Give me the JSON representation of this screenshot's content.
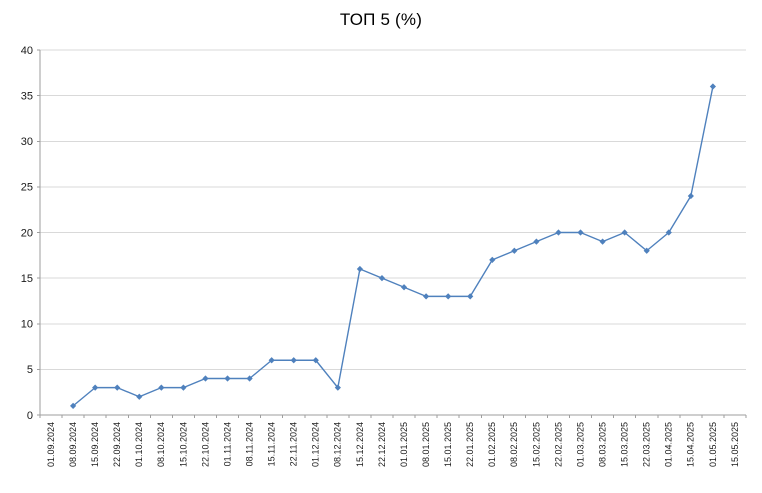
{
  "chart_data": {
    "type": "line",
    "title": "ТОП 5 (%)",
    "categories": [
      "01.09.2024",
      "08.09.2024",
      "15.09.2024",
      "22.09.2024",
      "01.10.2024",
      "08.10.2024",
      "15.10.2024",
      "22.10.2024",
      "01.11.2024",
      "08.11.2024",
      "15.11.2024",
      "22.11.2024",
      "01.12.2024",
      "08.12.2024",
      "15.12.2024",
      "22.12.2024",
      "01.01.2025",
      "08.01.2025",
      "15.01.2025",
      "22.01.2025",
      "01.02.2025",
      "08.02.2025",
      "15.02.2025",
      "22.02.2025",
      "01.03.2025",
      "08.03.2025",
      "15.03.2025",
      "22.03.2025",
      "01.04.2025",
      "15.04.2025",
      "01.05.2025",
      "15.05.2025"
    ],
    "values": [
      null,
      1,
      3,
      3,
      2,
      3,
      3,
      4,
      4,
      4,
      6,
      6,
      6,
      3,
      16,
      15,
      14,
      13,
      13,
      13,
      17,
      18,
      19,
      20,
      20,
      19,
      20,
      18,
      20,
      24,
      36,
      null
    ],
    "ylim": [
      0,
      40
    ],
    "ytick_step": 5,
    "ytick_labels": [
      "0",
      "5",
      "10",
      "15",
      "20",
      "25",
      "30",
      "35",
      "40"
    ],
    "xlabel": "",
    "ylabel": "",
    "legend": "none",
    "grid": "horizontal",
    "marker": "diamond",
    "line_color": "#4F81BD",
    "grid_color": "#D9D9D9",
    "axis_color": "#9E9E9E",
    "text_color": "#1a1a1a",
    "background": "#FFFFFF"
  }
}
